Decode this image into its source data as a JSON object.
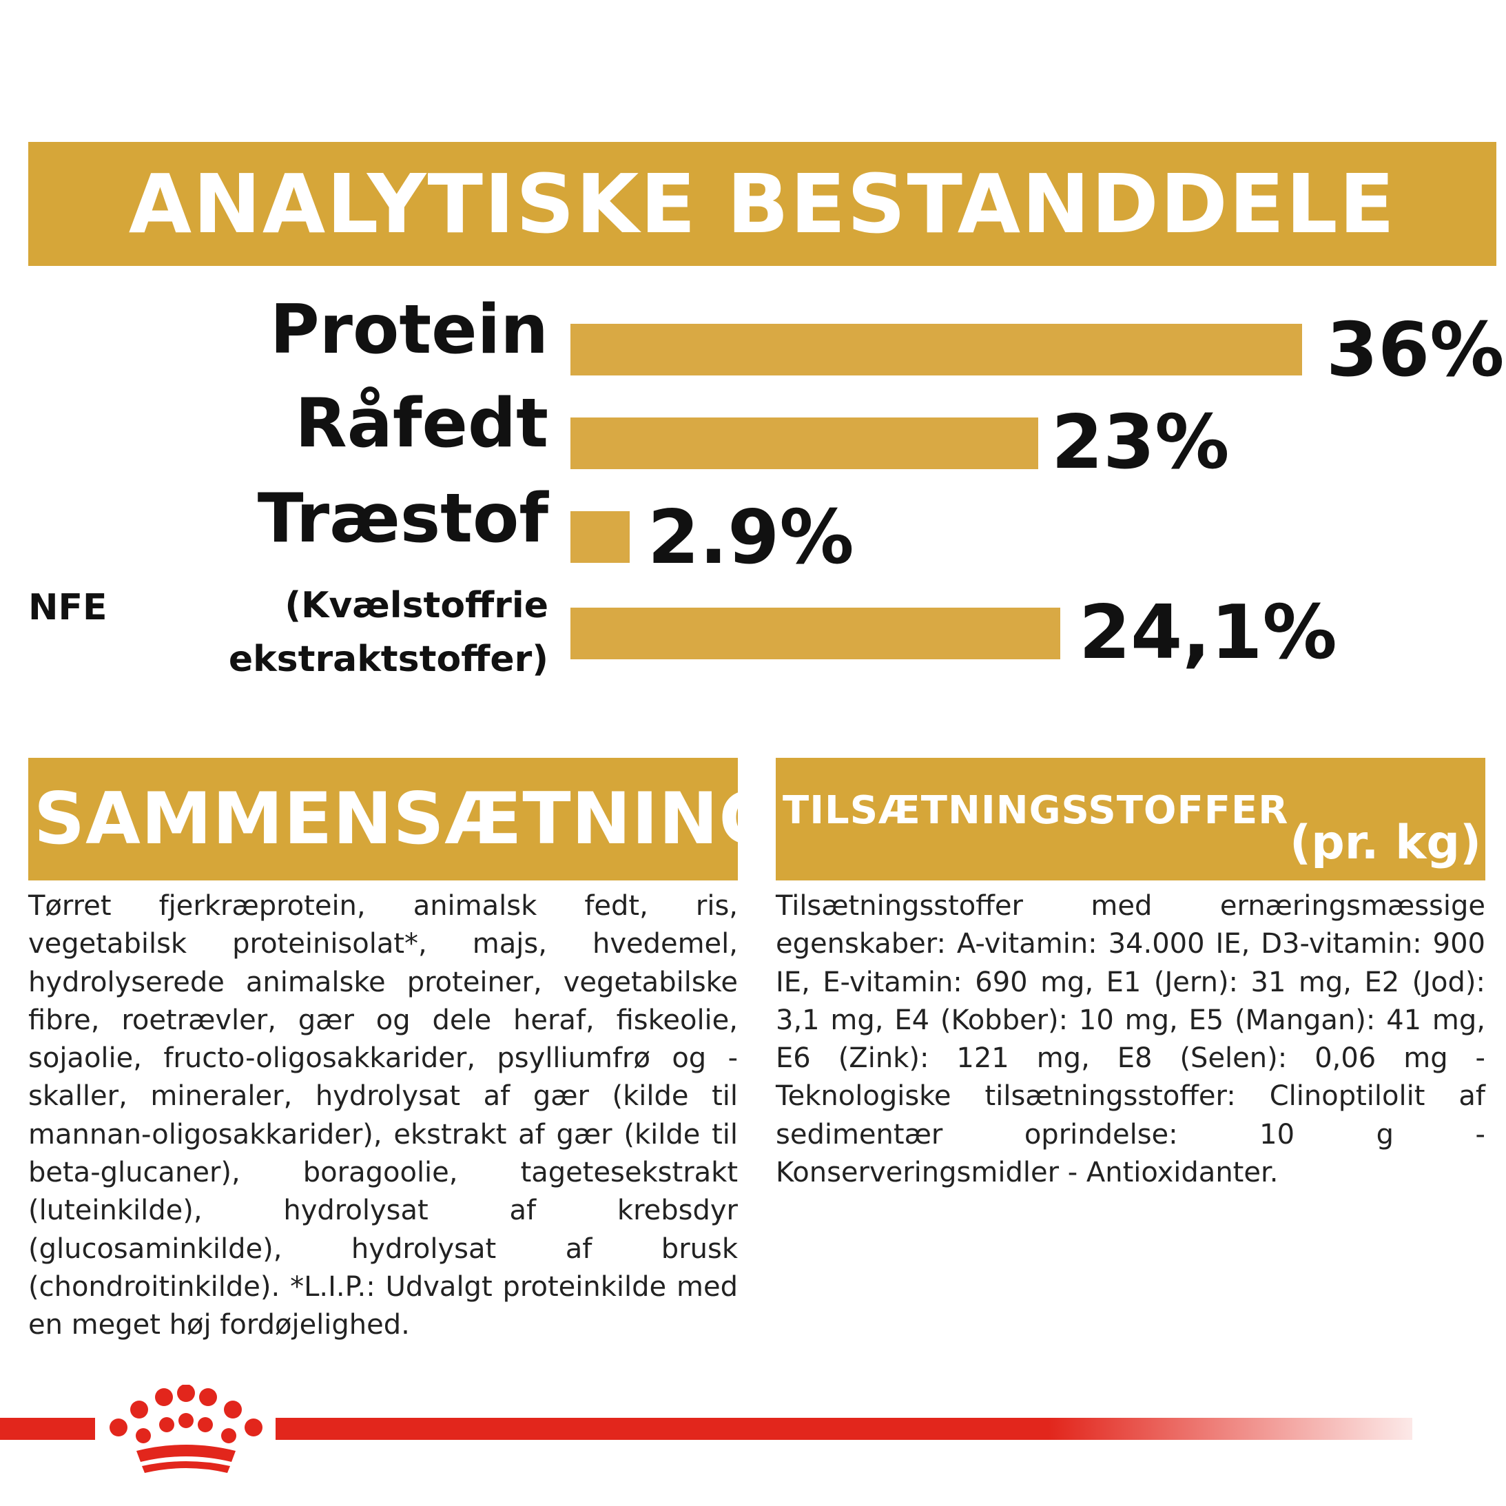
{
  "analytics": {
    "title": "ANALYTISKE BESTANDDELE",
    "rows": [
      {
        "label": "Protein",
        "value_text": "36%",
        "value": 36
      },
      {
        "label": "Råfedt",
        "value_text": "23%",
        "value": 23
      },
      {
        "label": "Træstof",
        "value_text": "2.9%",
        "value": 2.9
      },
      {
        "abbr": "NFE",
        "label_line1": "(Kvælstoffrie",
        "label_line2": "ekstraktstoffer)",
        "value_text": "24,1%",
        "value": 24.1
      }
    ]
  },
  "composition": {
    "title": "SAMMENSÆTNING",
    "text": "Tørret fjerkræprotein, animalsk fedt, ris, vegetabilsk proteinisolat*, majs, hvedemel, hydrolyserede animalske proteiner, vegetabilske fibre, roetrævler, gær og dele heraf, fiskeolie, sojaolie, fructo-oligosakkarider, psylliumfrø og -skaller, mineraler, hydrolysat af gær (kilde til mannan-oligosakkarider), ekstrakt af gær (kilde til beta-glucaner), boragoolie, tagetesekstrakt (luteinkilde), hydrolysat af krebsdyr (glucosaminkilde), hydrolysat af brusk (chondroitinkilde). *L.I.P.: Udvalgt proteinkilde med en meget høj fordøjelighed."
  },
  "additives": {
    "title": "TILSÆTNINGSSTOFFER",
    "unit": "(pr. kg)",
    "text": "Tilsætningsstoffer med ernæringsmæssige egenskaber: A-vitamin: 34.000 IE, D3-vitamin: 900 IE, E-vitamin: 690 mg, E1 (Jern): 31 mg, E2 (Jod): 3,1 mg, E4 (Kobber): 10 mg, E5 (Mangan): 41 mg, E6 (Zink): 121 mg, E8 (Selen): 0,06 mg - Teknologiske tilsætningsstoffer: Clinoptilolit af sedimentær oprindelse: 10 g - Konserveringsmidler - Antioxidanter."
  },
  "colors": {
    "band": "#d6a639",
    "bar": "#d9a944",
    "brand_red": "#e2261c"
  },
  "logo": {
    "icon": "crown-icon"
  }
}
